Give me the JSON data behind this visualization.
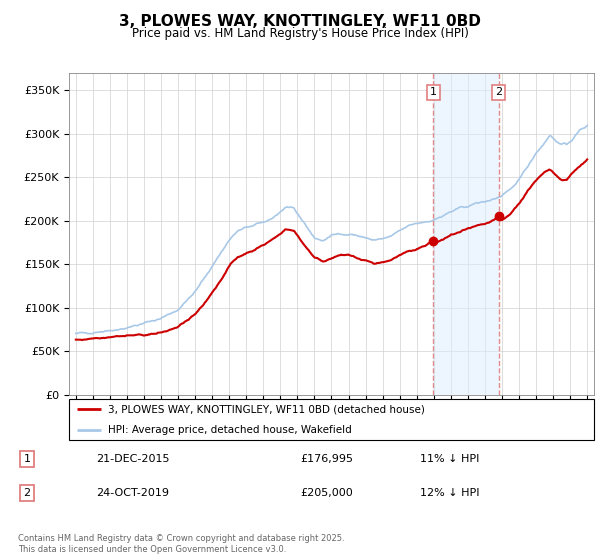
{
  "title": "3, PLOWES WAY, KNOTTINGLEY, WF11 0BD",
  "subtitle": "Price paid vs. HM Land Registry's House Price Index (HPI)",
  "legend_line1": "3, PLOWES WAY, KNOTTINGLEY, WF11 0BD (detached house)",
  "legend_line2": "HPI: Average price, detached house, Wakefield",
  "transaction1_date": "21-DEC-2015",
  "transaction1_price": "£176,995",
  "transaction1_hpi": "11% ↓ HPI",
  "transaction2_date": "24-OCT-2019",
  "transaction2_price": "£205,000",
  "transaction2_hpi": "12% ↓ HPI",
  "footer": "Contains HM Land Registry data © Crown copyright and database right 2025.\nThis data is licensed under the Open Government Licence v3.0.",
  "hpi_color": "#a8c8e8",
  "hpi_fill_color": "#ddeeff",
  "price_color": "#cc0000",
  "marker_color": "#cc0000",
  "dashed_line_color": "#e08080",
  "shade_color": "#ddeeff",
  "ylim_min": 0,
  "ylim_max": 370000,
  "yticks": [
    0,
    50000,
    100000,
    150000,
    200000,
    250000,
    300000,
    350000
  ],
  "transaction1_x": 2015.97,
  "transaction1_y": 176995,
  "transaction2_x": 2019.81,
  "transaction2_y": 205000,
  "xmin": 1995.0,
  "xmax": 2025.2
}
